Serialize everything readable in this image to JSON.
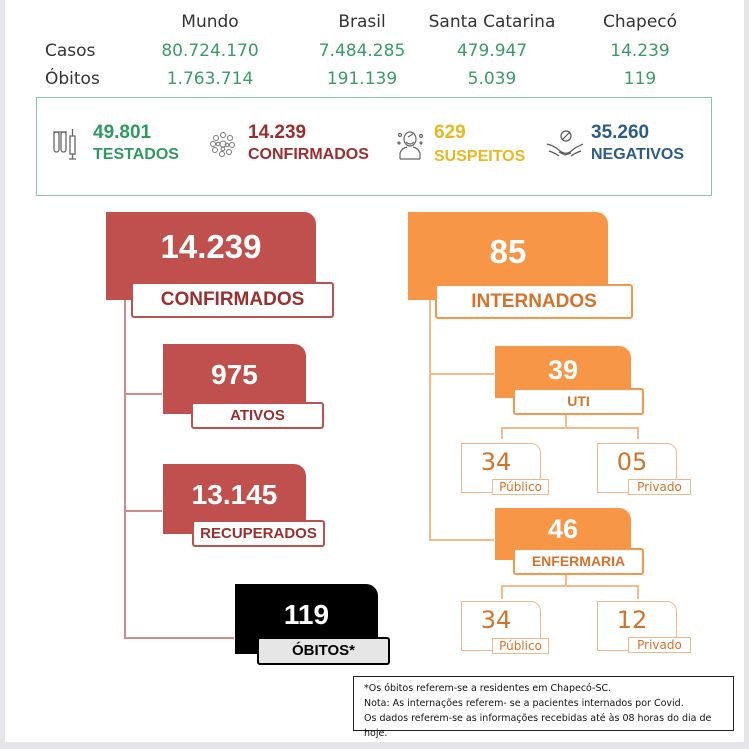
{
  "table": {
    "columns": [
      "Mundo",
      "Brasil",
      "Santa Catarina",
      "Chapecó"
    ],
    "rows": [
      {
        "label": "Casos",
        "values": [
          "80.724.170",
          "7.484.285",
          "479.947",
          "14.239"
        ]
      },
      {
        "label": "Óbitos",
        "values": [
          "1.763.714",
          "191.139",
          "5.039",
          "119"
        ]
      }
    ]
  },
  "summary": {
    "testados": {
      "value": "49.801",
      "label": "TESTADOS",
      "icon": "test-tubes-syringe-icon",
      "color": "#2e9a5f"
    },
    "confirmados": {
      "value": "14.239",
      "label": "CONFIRMADOS",
      "icon": "virus-icon",
      "color": "#9b2f2f"
    },
    "suspeitos": {
      "value": "629",
      "label": "SUSPEITOS",
      "icon": "sick-person-icon",
      "color": "#e8b820"
    },
    "negativos": {
      "value": "35.260",
      "label": "NEGATIVOS",
      "icon": "handshake-no-virus-icon",
      "color": "#2e5b8a"
    }
  },
  "confirmed_tree": {
    "total": {
      "value": "14.239",
      "label": "CONFIRMADOS"
    },
    "ativos": {
      "value": "975",
      "label": "ATIVOS"
    },
    "recuperados": {
      "value": "13.145",
      "label": "RECUPERADOS"
    },
    "obitos": {
      "value": "119",
      "label": "ÓBITOS*"
    }
  },
  "hospital_tree": {
    "total": {
      "value": "85",
      "label": "INTERNADOS"
    },
    "uti": {
      "value": "39",
      "label": "UTI",
      "publico": {
        "value": "34",
        "label": "Público"
      },
      "privado": {
        "value": "05",
        "label": "Privado"
      }
    },
    "enfermaria": {
      "value": "46",
      "label": "ENFERMARIA",
      "publico": {
        "value": "34",
        "label": "Público"
      },
      "privado": {
        "value": "12",
        "label": "Privado"
      }
    }
  },
  "notes": [
    "*Os óbitos referem-se a residentes em Chapecó-SC.",
    "Nota: As internações referem- se a pacientes internados por Covid.",
    "Os dados referem-se as informações recebidas até às 08 horas do dia de hoje."
  ],
  "colors": {
    "red": "#c0504d",
    "orange": "#f79646",
    "black": "#000000",
    "green": "#3a9a6a"
  }
}
